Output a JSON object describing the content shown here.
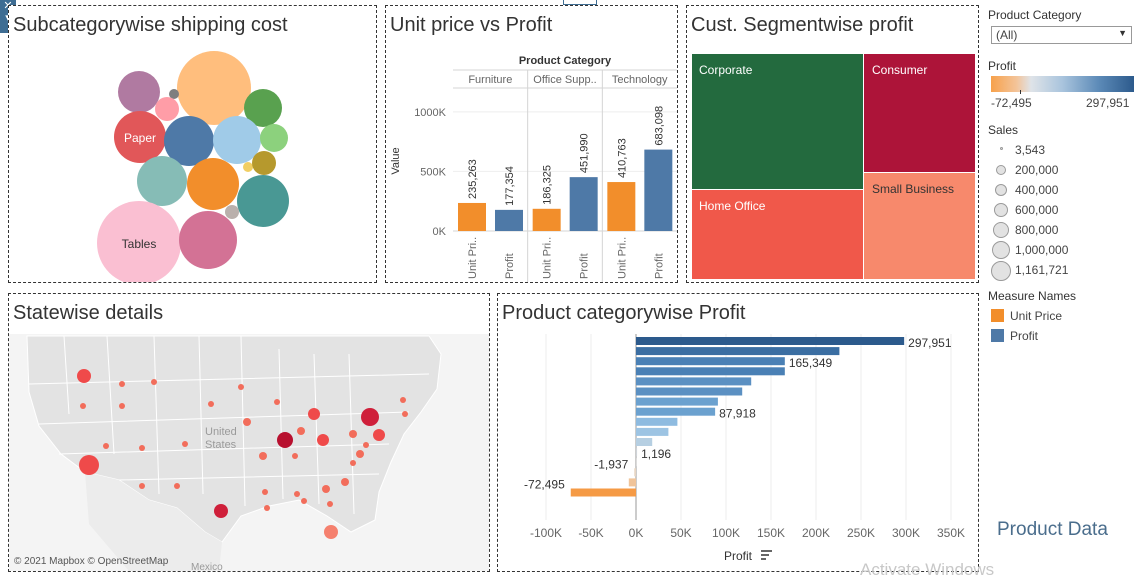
{
  "dashboard": {
    "side_title": "Product Data",
    "watermark": "Activate Windows"
  },
  "filter": {
    "label": "Product Category",
    "selected": "(All)"
  },
  "profit_legend": {
    "label": "Profit",
    "min_label": "-72,495",
    "max_label": "297,951"
  },
  "sales_legend": {
    "label": "Sales",
    "items": [
      "3,543",
      "200,000",
      "400,000",
      "600,000",
      "800,000",
      "1,000,000",
      "1,161,721"
    ]
  },
  "measure_legend": {
    "label": "Measure Names",
    "items": [
      {
        "label": "Unit Price",
        "color": "#f28e2b"
      },
      {
        "label": "Profit",
        "color": "#4e79a7"
      }
    ]
  },
  "bubble": {
    "title": "Subcategorywise shipping cost",
    "labels": {
      "paper": "Paper",
      "tables": "Tables"
    }
  },
  "treemap": {
    "title": "Cust. Segmentwise profit",
    "segments": [
      {
        "name": "Corporate",
        "color": "#236a3e"
      },
      {
        "name": "Consumer",
        "color": "#ad1439"
      },
      {
        "name": "Home Office",
        "color": "#f0584a"
      },
      {
        "name": "Small Business",
        "color": "#f7896c"
      }
    ]
  },
  "map": {
    "title": "Statewise details",
    "country_label": "United States",
    "country_label_line1": "United",
    "country_label_line2": "States",
    "attribution": "© 2021 Mapbox © OpenStreetMap",
    "mexico_label": "Mexico"
  },
  "chart_data": [
    {
      "type": "bar",
      "title": "Unit price vs Profit",
      "header_label": "Product Category",
      "ylabel": "Value",
      "ylim": [
        0,
        1200000
      ],
      "yticks": [
        "0K",
        "500K",
        "1000K"
      ],
      "categories": [
        "Furniture",
        "Office Supp..",
        "Technology"
      ],
      "measure_labels": [
        "Unit Pri..",
        "Profit"
      ],
      "series": [
        {
          "name": "Unit Price",
          "color": "#f28e2b",
          "values": [
            235263,
            186325,
            410763
          ],
          "labels": [
            "235,263",
            "186,325",
            "410,763"
          ]
        },
        {
          "name": "Profit",
          "color": "#4e79a7",
          "values": [
            177354,
            451990,
            683098
          ],
          "labels": [
            "177,354",
            "451,990",
            "683,098"
          ]
        }
      ]
    },
    {
      "type": "bar",
      "orientation": "horizontal",
      "title": "Product categorywise Profit",
      "xlabel": "Profit",
      "xlim": [
        -100000,
        350000
      ],
      "xticks": [
        "-100K",
        "-50K",
        "0K",
        "50K",
        "100K",
        "150K",
        "200K",
        "250K",
        "300K",
        "350K"
      ],
      "values": [
        297951,
        226000,
        165349,
        165349,
        128000,
        118000,
        91000,
        87918,
        46000,
        36000,
        18000,
        1196,
        300,
        -1937,
        -8000,
        -72495
      ],
      "colors": [
        "#2c5a8c",
        "#3b6ea2",
        "#4a80b5",
        "#4a80b5",
        "#5b90c2",
        "#5b90c2",
        "#6ba1cf",
        "#6ba1cf",
        "#8ebbe0",
        "#9dc4e3",
        "#b6cfe2",
        "#cfd4d9",
        "#dcdcdc",
        "#e7d6c4",
        "#f0c49a",
        "#f59a45"
      ],
      "data_labels": [
        {
          "index": 0,
          "text": "297,951"
        },
        {
          "index": 2,
          "text": "165,349"
        },
        {
          "index": 7,
          "text": "87,918"
        },
        {
          "index": 11,
          "text": "1,196"
        },
        {
          "index": 13,
          "text": "-1,937"
        },
        {
          "index": 15,
          "text": "-72,495"
        }
      ]
    }
  ]
}
